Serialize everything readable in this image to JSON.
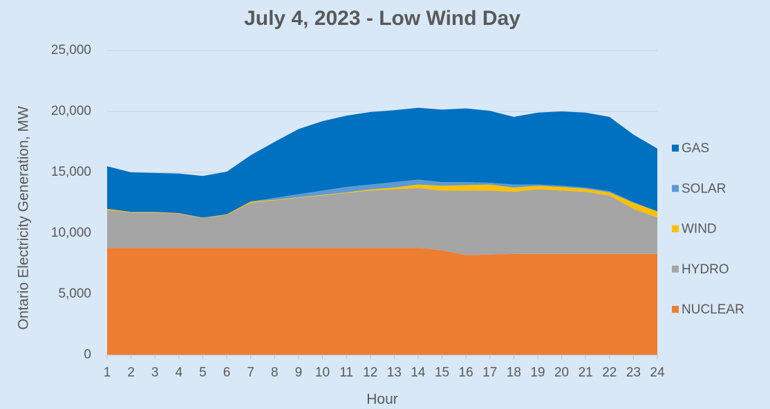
{
  "chart_data": {
    "type": "stacked_area",
    "title": "July 4, 2023 - Low Wind Day",
    "y_label": "Ontario Electricity Generation, MW",
    "x_label": "Hour",
    "x": [
      1,
      2,
      3,
      4,
      5,
      6,
      7,
      8,
      9,
      10,
      11,
      12,
      13,
      14,
      15,
      16,
      17,
      18,
      19,
      20,
      21,
      22,
      23,
      24
    ],
    "xlim": [
      1,
      24
    ],
    "xticks": [
      1,
      2,
      3,
      4,
      5,
      6,
      7,
      8,
      9,
      10,
      11,
      12,
      13,
      14,
      15,
      16,
      17,
      18,
      19,
      20,
      21,
      22,
      23,
      24
    ],
    "ylim": [
      0,
      25000
    ],
    "yticks": [
      0,
      {
        "value": 5000,
        "label": "5,000"
      },
      {
        "value": 10000,
        "label": "10,000"
      },
      {
        "value": 15000,
        "label": "15,000"
      },
      {
        "value": 20000,
        "label": "20,000"
      },
      {
        "value": 25000,
        "label": "25,000"
      }
    ],
    "grid": true,
    "legend": "right",
    "series": [
      {
        "name": "NUCLEAR",
        "color": "#ed7d31",
        "values": [
          8800,
          8800,
          8800,
          8800,
          8800,
          8800,
          8800,
          8800,
          8800,
          8800,
          8800,
          8800,
          8800,
          8800,
          8600,
          8200,
          8250,
          8300,
          8300,
          8300,
          8300,
          8300,
          8300,
          8300
        ]
      },
      {
        "name": "HYDRO",
        "color": "#a5a5a5",
        "values": [
          3100,
          2900,
          2900,
          2800,
          2450,
          2700,
          3700,
          3900,
          4100,
          4300,
          4500,
          4700,
          4800,
          4900,
          4900,
          5300,
          5250,
          5100,
          5300,
          5200,
          5100,
          4800,
          3700,
          3000
        ]
      },
      {
        "name": "WIND",
        "color": "#ffc000",
        "values": [
          100,
          50,
          50,
          50,
          30,
          50,
          100,
          50,
          50,
          50,
          50,
          100,
          150,
          300,
          400,
          450,
          500,
          350,
          300,
          300,
          250,
          250,
          500,
          500
        ]
      },
      {
        "name": "SOLAR",
        "color": "#5b9bd5",
        "values": [
          0,
          0,
          0,
          0,
          0,
          0,
          0,
          150,
          250,
          350,
          450,
          400,
          450,
          400,
          300,
          250,
          150,
          250,
          100,
          100,
          100,
          100,
          50,
          0
        ]
      },
      {
        "name": "GAS",
        "color": "#0070c0",
        "values": [
          3500,
          3250,
          3200,
          3250,
          3420,
          3500,
          3800,
          4600,
          5350,
          5700,
          5850,
          5950,
          5900,
          5900,
          5950,
          6050,
          5900,
          5550,
          5900,
          6100,
          6150,
          6100,
          5550,
          5150
        ]
      }
    ]
  }
}
